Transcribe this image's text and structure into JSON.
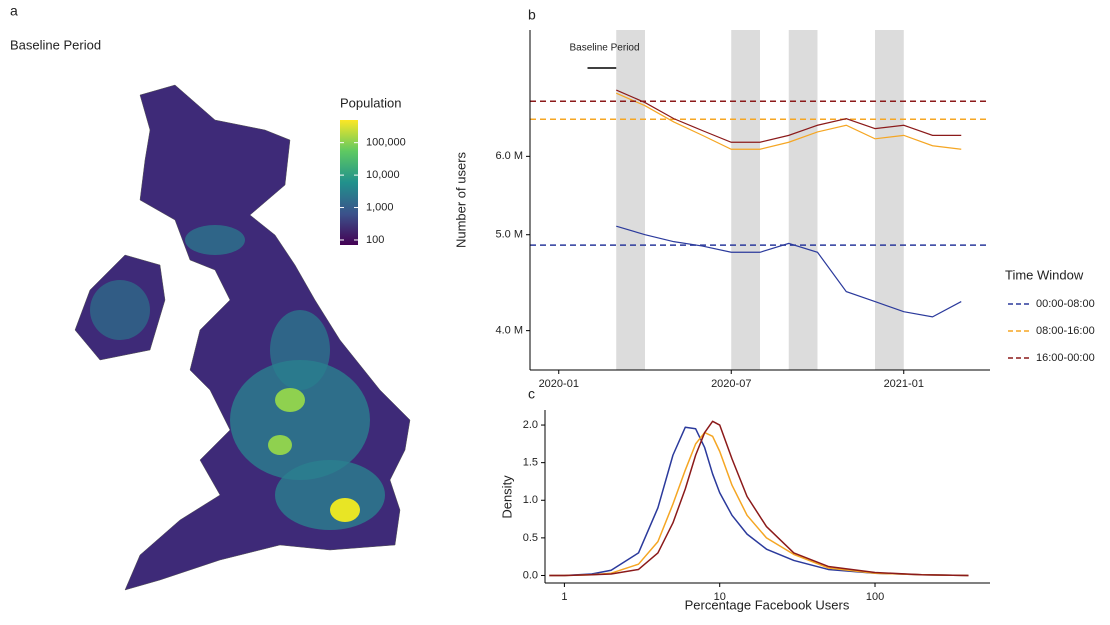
{
  "chart_data": [
    {
      "type": "map",
      "panel": "a",
      "title": "Baseline Period",
      "colorbar": {
        "title": "Population",
        "log": true,
        "lim": [
          70,
          500000
        ],
        "ticks": [
          100,
          {
            "value": 1000,
            "label": "1,000"
          },
          {
            "value": 10000,
            "label": "10,000"
          },
          {
            "value": 100000,
            "label": "100,000"
          }
        ],
        "colors": [
          "#440154",
          "#3b528b",
          "#21918c",
          "#5ec962",
          "#fde725"
        ]
      }
    },
    {
      "type": "line",
      "panel": "b",
      "y_label": "Number of users",
      "log_y": true,
      "x": [
        "2020-03",
        "2020-04",
        "2020-05",
        "2020-06",
        "2020-07",
        "2020-08",
        "2020-09",
        "2020-10",
        "2020-11",
        "2020-12",
        "2021-01",
        "2021-02",
        "2021-03"
      ],
      "xlim": [
        "2019-12",
        "2021-04"
      ],
      "xticks": [
        "2020-01",
        "2020-07",
        "2021-01"
      ],
      "ylim": [
        3650000,
        8050000
      ],
      "yticks": [
        {
          "value": 4000000,
          "label": "4.0 M"
        },
        {
          "value": 5000000,
          "label": "5.0 M"
        },
        {
          "value": 6000000,
          "label": "6.0 M"
        }
      ],
      "shaded_periods": [
        [
          "2020-03",
          "2020-04"
        ],
        [
          "2020-07",
          "2020-08"
        ],
        [
          "2020-09",
          "2020-10"
        ],
        [
          "2020-12",
          "2021-01"
        ]
      ],
      "baseline_period": {
        "label": "Baseline Period",
        "start": "2020-02",
        "end": "2020-03"
      },
      "legend_title": "Time Window",
      "legend": "right",
      "series": [
        {
          "name": "00:00-08:00",
          "color": "#2b3a9c",
          "baseline": 4880000,
          "values": [
            5100000,
            5000000,
            4920000,
            4870000,
            4800000,
            4800000,
            4900000,
            4800000,
            4380000,
            4280000,
            4180000,
            4130000,
            4280000
          ]
        },
        {
          "name": "08:00-16:00",
          "color": "#f5a623",
          "baseline": 6540000,
          "values": [
            6950000,
            6750000,
            6500000,
            6300000,
            6100000,
            6100000,
            6200000,
            6350000,
            6450000,
            6250000,
            6300000,
            6150000,
            6100000
          ]
        },
        {
          "name": "16:00-00:00",
          "color": "#8b1a1a",
          "baseline": 6820000,
          "values": [
            7000000,
            6800000,
            6550000,
            6370000,
            6200000,
            6200000,
            6300000,
            6450000,
            6550000,
            6400000,
            6450000,
            6300000,
            6300000
          ]
        }
      ]
    },
    {
      "type": "density",
      "panel": "c",
      "x_label": "Percentage Facebook Users",
      "y_label": "Density",
      "log_x": true,
      "x": [
        0.8,
        1,
        1.5,
        2,
        3,
        4,
        5,
        6,
        7,
        8,
        9,
        10,
        12,
        15,
        20,
        30,
        50,
        100,
        200,
        400
      ],
      "xlim": [
        0.75,
        550
      ],
      "xticks": [
        1,
        10,
        100
      ],
      "ylim": [
        -0.1,
        2.2
      ],
      "yticks": [
        {
          "value": 0,
          "label": "0.0"
        },
        0.5,
        {
          "value": 1,
          "label": "1.0"
        },
        1.5,
        {
          "value": 2,
          "label": "2.0"
        }
      ],
      "series": [
        {
          "color": "#2b3a9c",
          "values": [
            0,
            0,
            0.02,
            0.07,
            0.3,
            0.9,
            1.6,
            1.97,
            1.95,
            1.7,
            1.35,
            1.1,
            0.8,
            0.55,
            0.35,
            0.2,
            0.08,
            0.03,
            0.01,
            0
          ]
        },
        {
          "color": "#f5a623",
          "values": [
            0,
            0,
            0.01,
            0.03,
            0.15,
            0.45,
            0.95,
            1.4,
            1.75,
            1.9,
            1.85,
            1.65,
            1.2,
            0.8,
            0.5,
            0.28,
            0.1,
            0.03,
            0.01,
            0
          ]
        },
        {
          "color": "#8b1a1a",
          "values": [
            0,
            0,
            0.01,
            0.02,
            0.08,
            0.3,
            0.7,
            1.15,
            1.6,
            1.9,
            2.05,
            2.0,
            1.55,
            1.05,
            0.65,
            0.3,
            0.12,
            0.04,
            0.01,
            0
          ]
        }
      ]
    }
  ]
}
